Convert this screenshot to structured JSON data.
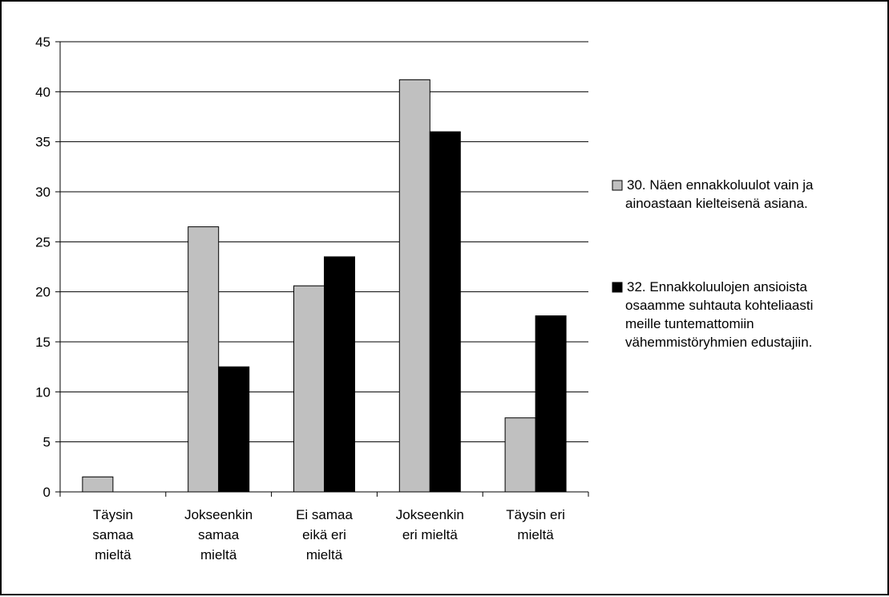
{
  "chart_data": {
    "type": "bar",
    "categories": [
      [
        "Täysin",
        "samaa",
        "mieltä"
      ],
      [
        "Jokseenkin",
        "samaa",
        "mieltä"
      ],
      [
        "Ei samaa",
        "eikä eri",
        "mieltä"
      ],
      [
        "Jokseenkin",
        "eri mieltä"
      ],
      [
        "Täysin eri",
        "mieltä"
      ]
    ],
    "series": [
      {
        "name": [
          "30. Näen ennakkoluulot vain ja",
          "ainoastaan kielteisenä asiana."
        ],
        "color": "#c0c0c0",
        "values": [
          1.5,
          26.5,
          20.6,
          41.2,
          7.4
        ]
      },
      {
        "name": [
          "32. Ennakkoluulojen ansioista",
          "osaamme suhtauta kohteliaasti",
          "meille tuntemattomiin",
          "vähemmistöryhmien edustajiin."
        ],
        "color": "#000000",
        "values": [
          0,
          12.5,
          23.5,
          36,
          17.6
        ]
      }
    ],
    "ylim": [
      0,
      45
    ],
    "yticks": [
      0,
      5,
      10,
      15,
      20,
      25,
      30,
      35,
      40,
      45
    ],
    "grid": true,
    "legend_position": "right"
  }
}
